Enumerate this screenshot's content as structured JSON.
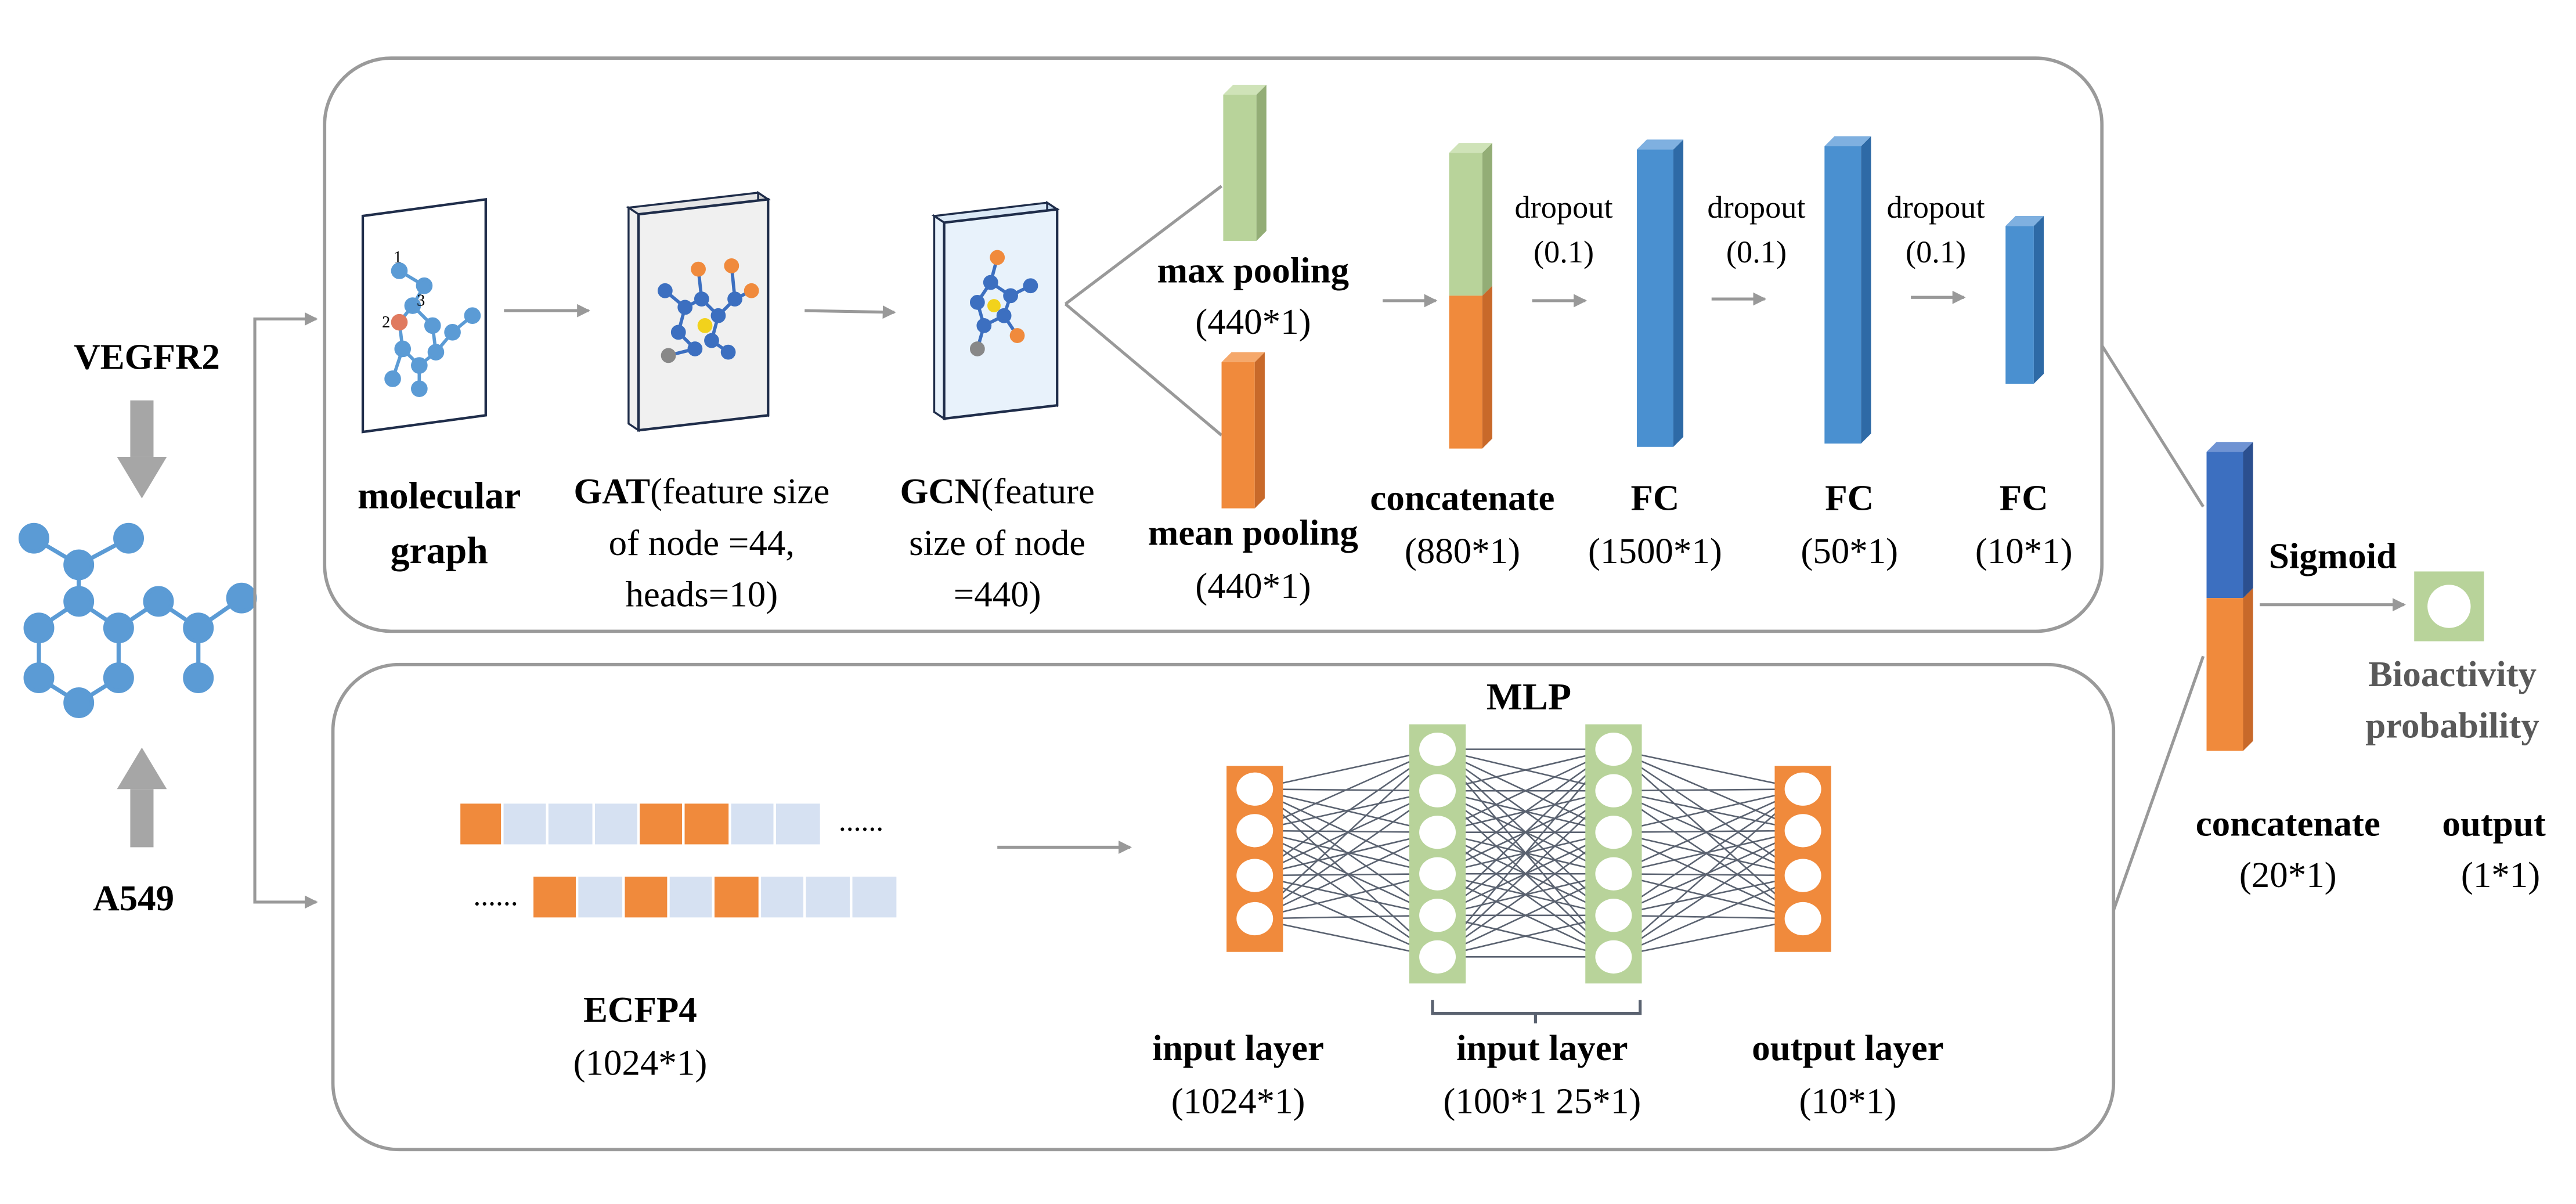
{
  "colors": {
    "green": "#b8d39a",
    "green_side": "#93ad76",
    "orange": "#f08a3c",
    "orange_side": "#c8692a",
    "blue": "#4a90d0",
    "blue_side": "#2e6aa6",
    "dark_blue": "#3c6fc0",
    "dark_blue_side": "#2b4f8f",
    "light_box": "#d6e1f2",
    "panel_border": "#9a9a9a",
    "arrow": "#999999",
    "atom_blue": "#5b9bd5"
  },
  "inputs": {
    "target1": "VEGFR2",
    "target2": "A549"
  },
  "top_branch": {
    "molecular_graph": {
      "line1": "molecular",
      "line2": "graph",
      "node_labels": [
        "1",
        "2",
        "3"
      ]
    },
    "gat": {
      "bold": "GAT",
      "rest": "(feature size",
      "line2": "of node =44,",
      "line3": "heads=10)"
    },
    "gcn": {
      "bold": "GCN",
      "rest": "(feature",
      "line2": "size of node",
      "line3": "=440)"
    },
    "max_pooling": {
      "label": "max pooling",
      "dim": "(440*1)"
    },
    "mean_pooling": {
      "label": "mean pooling",
      "dim": "(440*1)"
    },
    "concatenate": {
      "label": "concatenate",
      "dim": "(880*1)"
    },
    "dropouts": [
      {
        "label": "dropout",
        "value": "(0.1)"
      },
      {
        "label": "dropout",
        "value": "(0.1)"
      },
      {
        "label": "dropout",
        "value": "(0.1)"
      }
    ],
    "fc_layers": [
      {
        "label": "FC",
        "dim": "(1500*1)"
      },
      {
        "label": "FC",
        "dim": "(50*1)"
      },
      {
        "label": "FC",
        "dim": "(10*1)"
      }
    ]
  },
  "bottom_branch": {
    "ecfp": {
      "label": "ECFP4",
      "dim": "(1024*1)",
      "ellipsis": "......"
    },
    "mlp": {
      "title": "MLP",
      "input_layer": {
        "label": "input layer",
        "dim": "(1024*1)"
      },
      "hidden_layer": {
        "label": "input layer",
        "dim": "(100*1 25*1)"
      },
      "output_layer": {
        "label": "output layer",
        "dim": "(10*1)"
      }
    }
  },
  "fusion": {
    "concatenate": {
      "label": "concatenate",
      "dim": "(20*1)"
    },
    "sigmoid": "Sigmoid",
    "output": {
      "label": "output",
      "dim": "(1*1)"
    },
    "result": {
      "line1": "Bioactivity",
      "line2": "probability"
    }
  }
}
